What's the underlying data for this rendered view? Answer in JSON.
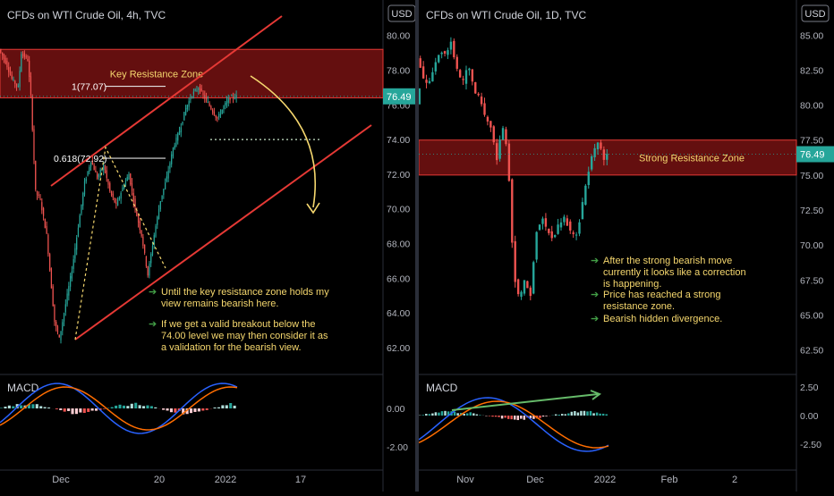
{
  "chart_data": [
    {
      "type": "candlestick",
      "title": "CFDs on WTI Crude Oil, 4h, TVC",
      "currency": "USD",
      "ylim": [
        60.5,
        80.5
      ],
      "y_ticks": [
        "80.00",
        "78.00",
        "76.00",
        "74.00",
        "72.00",
        "70.00",
        "68.00",
        "66.00",
        "64.00",
        "62.00"
      ],
      "x_ticks": [
        "Dec",
        "20",
        "2022",
        "17"
      ],
      "current_price": "76.49",
      "zones": [
        {
          "label": "Key Resistance Zone",
          "from": 76.4,
          "to": 79.2,
          "color": "#b71c1c"
        }
      ],
      "fib_levels": [
        {
          "label": "1(77.07)",
          "value": 77.07
        },
        {
          "label": "0.618(72.92)",
          "value": 72.92
        }
      ],
      "breakout_level": 74.0,
      "channel_upper": [
        [
          0,
          71.0
        ],
        [
          1,
          81.0
        ]
      ],
      "channel_lower": [
        [
          0,
          62.5
        ],
        [
          1,
          74.5
        ]
      ],
      "price_path": [
        [
          0,
          79.2
        ],
        [
          0.02,
          78.5
        ],
        [
          0.04,
          77.5
        ],
        [
          0.06,
          77.0
        ],
        [
          0.07,
          79.0
        ],
        [
          0.09,
          78.6
        ],
        [
          0.1,
          76.5
        ],
        [
          0.115,
          71.0
        ],
        [
          0.13,
          70.5
        ],
        [
          0.15,
          68.5
        ],
        [
          0.165,
          65.5
        ],
        [
          0.175,
          63.5
        ],
        [
          0.19,
          62.5
        ],
        [
          0.21,
          64.5
        ],
        [
          0.23,
          66.5
        ],
        [
          0.25,
          69.0
        ],
        [
          0.27,
          71.5
        ],
        [
          0.29,
          72.8
        ],
        [
          0.31,
          71.8
        ],
        [
          0.33,
          72.5
        ],
        [
          0.35,
          71.0
        ],
        [
          0.37,
          70.2
        ],
        [
          0.39,
          71.2
        ],
        [
          0.41,
          72.0
        ],
        [
          0.43,
          70.0
        ],
        [
          0.45,
          68.5
        ],
        [
          0.47,
          66.2
        ],
        [
          0.49,
          68.5
        ],
        [
          0.51,
          70.5
        ],
        [
          0.53,
          71.8
        ],
        [
          0.55,
          73.5
        ],
        [
          0.57,
          74.5
        ],
        [
          0.59,
          75.8
        ],
        [
          0.61,
          76.6
        ],
        [
          0.63,
          77.0
        ],
        [
          0.65,
          76.4
        ],
        [
          0.67,
          75.8
        ],
        [
          0.69,
          75.2
        ],
        [
          0.71,
          75.9
        ],
        [
          0.73,
          76.4
        ],
        [
          0.75,
          76.49
        ]
      ],
      "macd_label": "MACD",
      "macd_ticks": [
        "0.00",
        "-2.00"
      ],
      "notes": [
        "Until the key resistance zone holds my view remains bearish here.",
        "If we get a valid breakout below the 74.00 level we may then consider it as a validation for the bearish view."
      ]
    },
    {
      "type": "candlestick",
      "title": "CFDs on WTI Crude Oil, 1D, TVC",
      "currency": "USD",
      "ylim": [
        61.0,
        87.0
      ],
      "y_ticks": [
        "85.00",
        "82.50",
        "80.00",
        "77.50",
        "75.00",
        "72.50",
        "70.00",
        "67.50",
        "65.00",
        "62.50"
      ],
      "x_ticks": [
        "Nov",
        "Dec",
        "2022",
        "Feb",
        "2"
      ],
      "current_price": "76.49",
      "zones": [
        {
          "label": "Strong Resistance Zone",
          "from": 75.0,
          "to": 77.5,
          "color": "#b71c1c"
        }
      ],
      "price_path": [
        [
          0,
          83.5
        ],
        [
          0.02,
          82.0
        ],
        [
          0.04,
          81.5
        ],
        [
          0.06,
          82.8
        ],
        [
          0.08,
          84.0
        ],
        [
          0.1,
          83.5
        ],
        [
          0.12,
          84.5
        ],
        [
          0.14,
          82.5
        ],
        [
          0.16,
          81.5
        ],
        [
          0.18,
          83.0
        ],
        [
          0.2,
          81.0
        ],
        [
          0.22,
          80.5
        ],
        [
          0.24,
          79.0
        ],
        [
          0.26,
          78.5
        ],
        [
          0.28,
          76.0
        ],
        [
          0.3,
          78.5
        ],
        [
          0.32,
          76.5
        ],
        [
          0.34,
          68.0
        ],
        [
          0.36,
          66.0
        ],
        [
          0.38,
          67.5
        ],
        [
          0.4,
          66.5
        ],
        [
          0.42,
          71.0
        ],
        [
          0.44,
          72.0
        ],
        [
          0.46,
          71.0
        ],
        [
          0.48,
          70.5
        ],
        [
          0.5,
          71.5
        ],
        [
          0.52,
          72.0
        ],
        [
          0.54,
          71.0
        ],
        [
          0.56,
          70.5
        ],
        [
          0.58,
          72.5
        ],
        [
          0.6,
          75.0
        ],
        [
          0.62,
          76.5
        ],
        [
          0.64,
          77.5
        ],
        [
          0.66,
          76.0
        ],
        [
          0.67,
          76.49
        ]
      ],
      "macd_label": "MACD",
      "macd_ticks": [
        "2.50",
        "0.00",
        "-2.50"
      ],
      "notes": [
        "After the strong bearish move currently it looks like a correction is happening.",
        "Price has reached a strong resistance zone.",
        "Bearish hidden divergence."
      ]
    }
  ]
}
